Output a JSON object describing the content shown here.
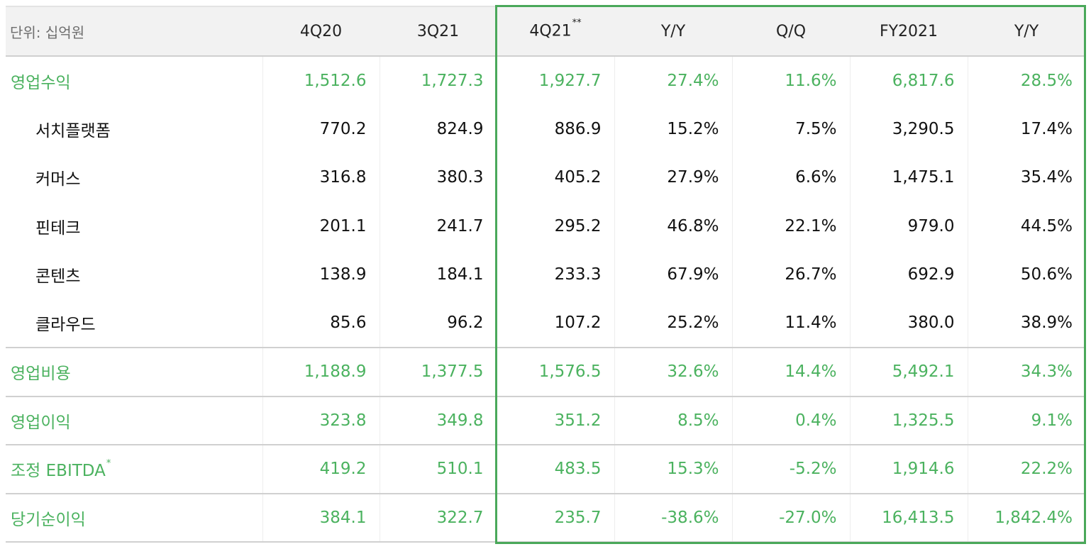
{
  "header": {
    "unit_label": "단위: 십억원",
    "columns": [
      "4Q20",
      "3Q21",
      "4Q21",
      "Y/Y",
      "Q/Q",
      "FY2021",
      "Y/Y"
    ],
    "q421_marker": "**"
  },
  "rows": [
    {
      "label": "영업수익",
      "values": [
        "1,512.6",
        "1,727.3",
        "1,927.7",
        "27.4%",
        "11.6%",
        "6,817.6",
        "28.5%"
      ]
    },
    {
      "label": "서치플랫폼",
      "values": [
        "770.2",
        "824.9",
        "886.9",
        "15.2%",
        "7.5%",
        "3,290.5",
        "17.4%"
      ]
    },
    {
      "label": "커머스",
      "values": [
        "316.8",
        "380.3",
        "405.2",
        "27.9%",
        "6.6%",
        "1,475.1",
        "35.4%"
      ]
    },
    {
      "label": "핀테크",
      "values": [
        "201.1",
        "241.7",
        "295.2",
        "46.8%",
        "22.1%",
        "979.0",
        "44.5%"
      ]
    },
    {
      "label": "콘텐츠",
      "values": [
        "138.9",
        "184.1",
        "233.3",
        "67.9%",
        "26.7%",
        "692.9",
        "50.6%"
      ]
    },
    {
      "label": "클라우드",
      "values": [
        "85.6",
        "96.2",
        "107.2",
        "25.2%",
        "11.4%",
        "380.0",
        "38.9%"
      ]
    },
    {
      "label": "영업비용",
      "values": [
        "1,188.9",
        "1,377.5",
        "1,576.5",
        "32.6%",
        "14.4%",
        "5,492.1",
        "34.3%"
      ]
    },
    {
      "label": "영업이익",
      "values": [
        "323.8",
        "349.8",
        "351.2",
        "8.5%",
        "0.4%",
        "1,325.5",
        "9.1%"
      ]
    },
    {
      "label": "조정 EBITDA",
      "marker": "*",
      "values": [
        "419.2",
        "510.1",
        "483.5",
        "15.3%",
        "-5.2%",
        "1,914.6",
        "22.2%"
      ]
    },
    {
      "label": "당기순이익",
      "values": [
        "384.1",
        "322.7",
        "235.7",
        "-38.6%",
        "-27.0%",
        "16,413.5",
        "1,842.4%"
      ]
    }
  ],
  "colors": {
    "accent_green": "#4bb25f",
    "highlight_border": "#4aa85a",
    "header_bg": "#f2f2f2"
  }
}
